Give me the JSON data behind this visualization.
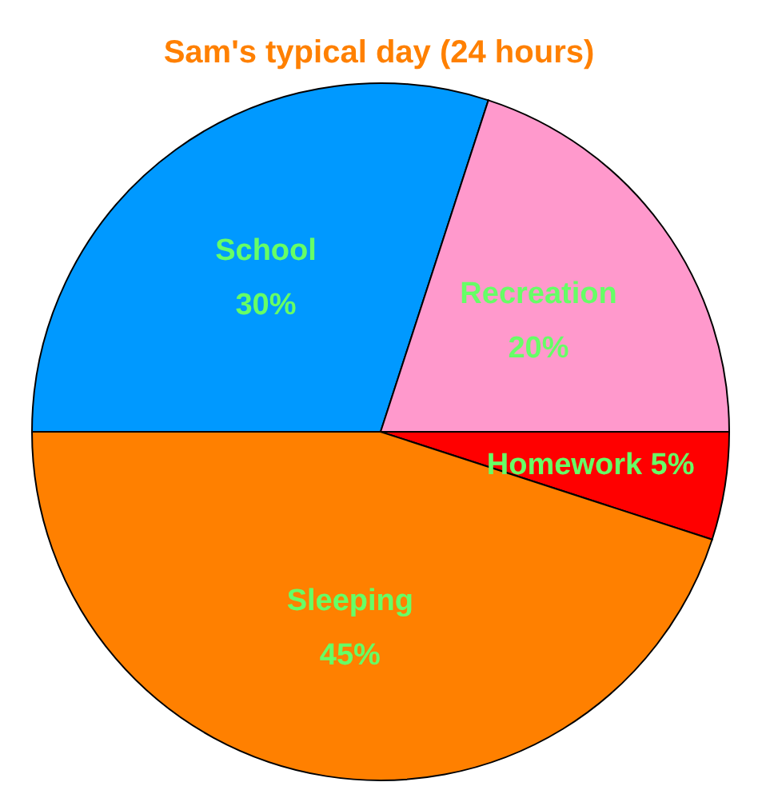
{
  "chart_data": {
    "type": "pie",
    "title": "Sam's typical day (24 hours)",
    "categories": [
      "School",
      "Recreation",
      "Homework",
      "Sleeping"
    ],
    "values": [
      30,
      20,
      5,
      45
    ],
    "value_labels": [
      "30%",
      "20%",
      "5%",
      "45%"
    ],
    "colors": [
      "#0099ff",
      "#ff99cc",
      "#ff0000",
      "#ff8000"
    ]
  }
}
